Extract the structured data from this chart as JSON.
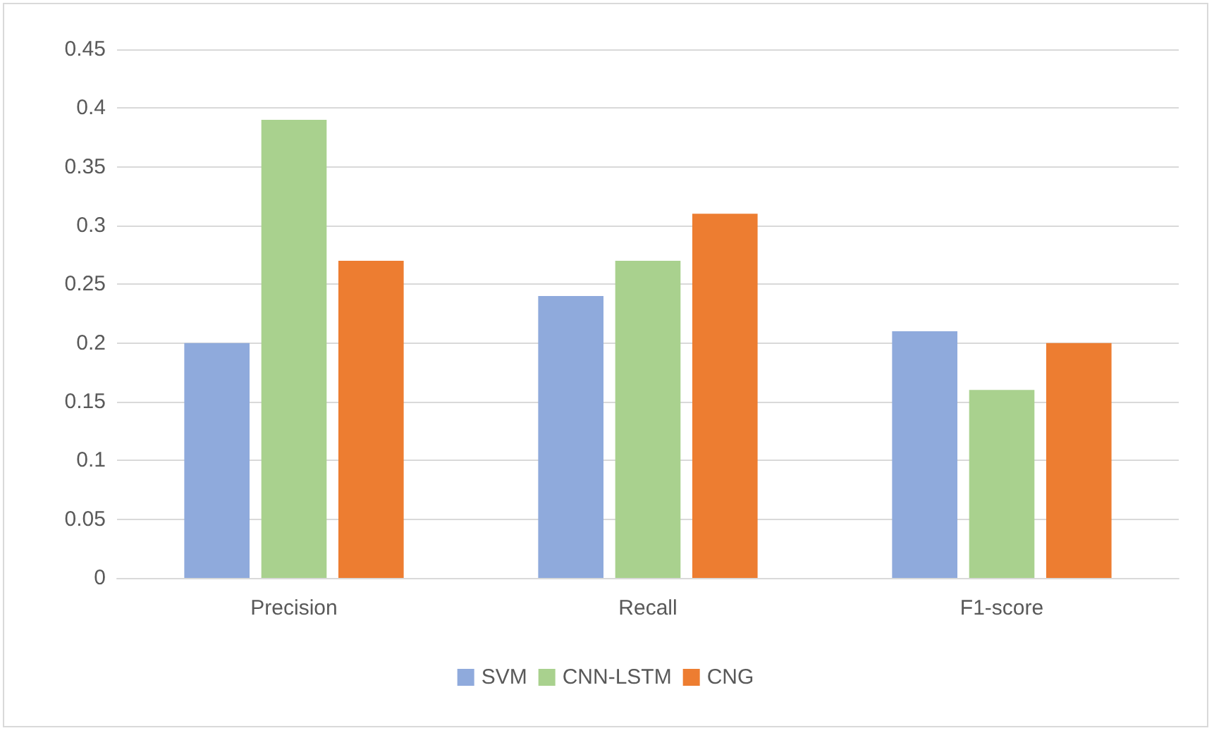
{
  "chart_data": {
    "type": "bar",
    "categories": [
      "Precision",
      "Recall",
      "F1-score"
    ],
    "series": [
      {
        "name": "SVM",
        "color": "#8faadc",
        "values": [
          0.2,
          0.24,
          0.21
        ]
      },
      {
        "name": "CNN-LSTM",
        "color": "#a9d18e",
        "values": [
          0.39,
          0.27,
          0.16
        ]
      },
      {
        "name": "CNG",
        "color": "#ed7d31",
        "values": [
          0.27,
          0.31,
          0.2
        ]
      }
    ],
    "ylim": [
      0,
      0.45
    ],
    "yticks": [
      0,
      0.05,
      0.1,
      0.15,
      0.2,
      0.25,
      0.3,
      0.35,
      0.4,
      0.45
    ],
    "grid": "y",
    "legend": "bottom"
  }
}
